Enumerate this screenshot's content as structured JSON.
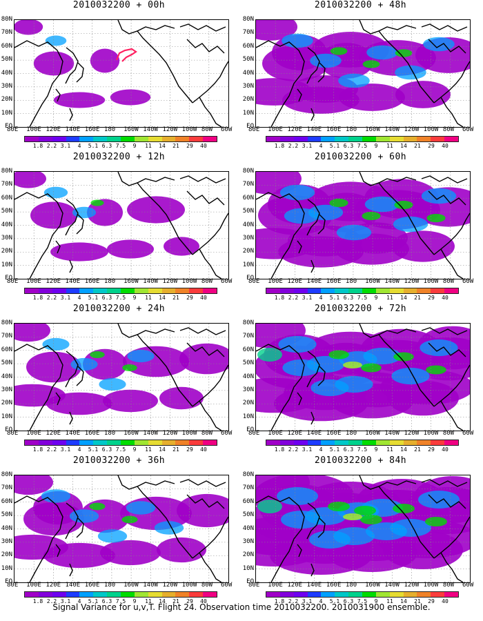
{
  "panels": [
    {
      "title": "2010032200 + 00h",
      "level": 0.08
    },
    {
      "title": "2010032200 + 48h",
      "level": 0.55
    },
    {
      "title": "2010032200 + 12h",
      "level": 0.2
    },
    {
      "title": "2010032200 + 60h",
      "level": 0.7
    },
    {
      "title": "2010032200 + 24h",
      "level": 0.35
    },
    {
      "title": "2010032200 + 72h",
      "level": 0.85
    },
    {
      "title": "2010032200 + 36h",
      "level": 0.45
    },
    {
      "title": "2010032200 + 84h",
      "level": 1.0
    }
  ],
  "lat_labels": [
    "80N",
    "70N",
    "60N",
    "50N",
    "40N",
    "30N",
    "20N",
    "10N",
    "EQ"
  ],
  "lon_labels": [
    "80E",
    "100E",
    "120E",
    "140E",
    "160E",
    "180",
    "160W",
    "140W",
    "120W",
    "100W",
    "80W",
    "60W"
  ],
  "colorbar": {
    "labels": [
      "1.8",
      "2.2",
      "3.1",
      "4",
      "5.1",
      "6.3",
      "7.5",
      "9",
      "11",
      "14",
      "21",
      "29",
      "40"
    ],
    "colors": [
      "#a000c8",
      "#8200dc",
      "#6e00f0",
      "#1e3cff",
      "#00a0ff",
      "#00c8c8",
      "#00d28c",
      "#00dc00",
      "#a0e632",
      "#e6dc32",
      "#e6af2d",
      "#f08228",
      "#fa3c3c",
      "#f00082"
    ]
  },
  "footer": "Signal Variance for u,v,T. Flight 24. Observation time 2010032200. 2010031900 ensemble."
}
